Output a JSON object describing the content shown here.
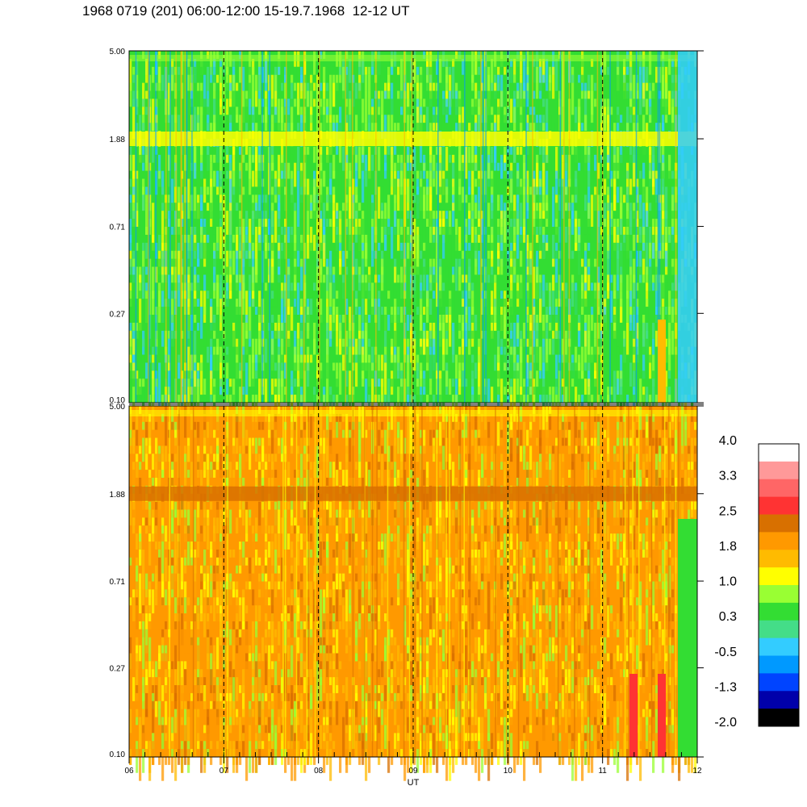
{
  "title": "1968 0719 (201) 06:00-12:00 15-19.7.1968  12-12 UT",
  "chart_data": {
    "type": "heatmap",
    "title": "1968 0719 (201) 06:00-12:00 15-19.7.1968  12-12 UT",
    "xlabel": "UT",
    "x_ticks": [
      "06",
      "07",
      "08",
      "09",
      "10",
      "11",
      "12"
    ],
    "xlim": [
      6,
      12
    ],
    "scale": "log",
    "panels": [
      {
        "name": "",
        "ylim": [
          0.1,
          5.0
        ],
        "y_ticks": [
          "5.00",
          "1.88",
          "0.71",
          "0.27",
          "0.10"
        ],
        "y_tick_values": [
          5.0,
          1.88,
          0.71,
          0.27,
          0.1
        ],
        "dominant_color": "#33dd33",
        "band_at": 1.88,
        "band_color": "#ffff00"
      },
      {
        "name": "",
        "ylim": [
          0.1,
          5.0
        ],
        "y_ticks": [
          "5.00",
          "1.88",
          "0.71",
          "0.27",
          "0.10"
        ],
        "y_tick_values": [
          5.0,
          1.88,
          0.71,
          0.27,
          0.1
        ],
        "dominant_color": "#ff9900",
        "band_at": 1.88,
        "band_color": "#d87000"
      }
    ],
    "colorbar": {
      "labels": [
        "4.0",
        "3.3",
        "2.5",
        "1.8",
        "1.0",
        "0.3",
        "-0.5",
        "-1.3",
        "-2.0"
      ],
      "colors": [
        "#ffffff",
        "#ff9999",
        "#ff6666",
        "#ff3333",
        "#d87000",
        "#ff9900",
        "#ffbb00",
        "#ffff00",
        "#99ff33",
        "#33dd33",
        "#44dd88",
        "#33ccff",
        "#0099ff",
        "#0044ff",
        "#0000aa",
        "#000000"
      ]
    }
  }
}
